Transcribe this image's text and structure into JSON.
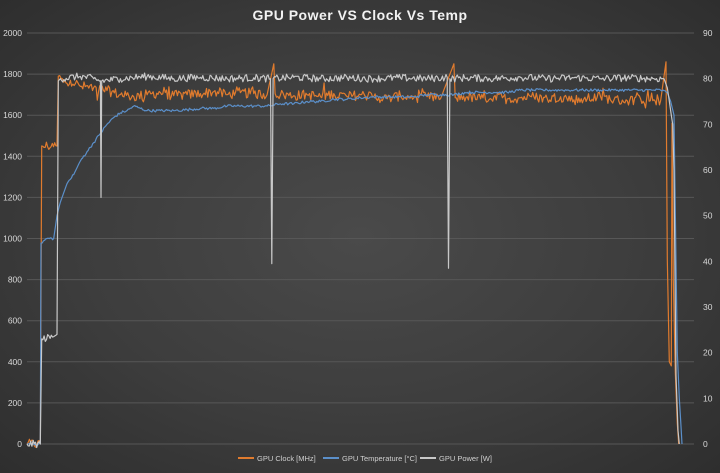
{
  "chart_data": {
    "type": "line",
    "title": "GPU Power VS Clock Vs Temp",
    "xlabel": "",
    "ylabel": "",
    "left_axis": {
      "min": 0,
      "max": 2000,
      "ticks": [
        "0",
        "200",
        "400",
        "600",
        "800",
        "1000",
        "1200",
        "1400",
        "1600",
        "1800",
        "2000"
      ]
    },
    "right_axis": {
      "min": 0,
      "max": 90,
      "ticks": [
        "0",
        "10",
        "20",
        "30",
        "40",
        "50",
        "60",
        "70",
        "80",
        "90"
      ]
    },
    "x_range": [
      0,
      100
    ],
    "grid": true,
    "legend_position": "bottom",
    "series": [
      {
        "name": "GPU Clock [MHz]",
        "axis": "left",
        "color": "#e07b2e",
        "points": [
          [
            0,
            0
          ],
          [
            2,
            0
          ],
          [
            2.2,
            1450
          ],
          [
            4.5,
            1450
          ],
          [
            4.7,
            1790
          ],
          [
            5.5,
            1760
          ],
          [
            6.5,
            1770
          ],
          [
            8,
            1740
          ],
          [
            10,
            1735
          ],
          [
            12,
            1720
          ],
          [
            14,
            1700
          ],
          [
            16,
            1690
          ],
          [
            18,
            1700
          ],
          [
            20,
            1710
          ],
          [
            22,
            1695
          ],
          [
            24,
            1700
          ],
          [
            26,
            1705
          ],
          [
            28,
            1715
          ],
          [
            30,
            1700
          ],
          [
            32,
            1710
          ],
          [
            34,
            1705
          ],
          [
            36,
            1700
          ],
          [
            37,
            1850
          ],
          [
            37.2,
            1705
          ],
          [
            38,
            1700
          ],
          [
            40,
            1695
          ],
          [
            42,
            1700
          ],
          [
            44,
            1690
          ],
          [
            46,
            1705
          ],
          [
            48,
            1690
          ],
          [
            50,
            1700
          ],
          [
            52,
            1690
          ],
          [
            54,
            1680
          ],
          [
            56,
            1695
          ],
          [
            58,
            1685
          ],
          [
            60,
            1690
          ],
          [
            62,
            1680
          ],
          [
            64,
            1850
          ],
          [
            64.2,
            1685
          ],
          [
            66,
            1690
          ],
          [
            68,
            1680
          ],
          [
            70,
            1690
          ],
          [
            72,
            1680
          ],
          [
            74,
            1685
          ],
          [
            76,
            1690
          ],
          [
            78,
            1680
          ],
          [
            80,
            1690
          ],
          [
            82,
            1675
          ],
          [
            84,
            1680
          ],
          [
            86,
            1690
          ],
          [
            88,
            1675
          ],
          [
            90,
            1670
          ],
          [
            92,
            1680
          ],
          [
            94,
            1675
          ],
          [
            95,
            1670
          ],
          [
            95.8,
            1860
          ],
          [
            96,
            900
          ],
          [
            96.3,
            400
          ],
          [
            96.6,
            380
          ],
          [
            96.7,
            1560
          ],
          [
            96.9,
            800
          ],
          [
            97.2,
            350
          ],
          [
            97.5,
            100
          ],
          [
            97.7,
            0
          ]
        ],
        "noise": 25
      },
      {
        "name": "GPU Temperature [°C]",
        "axis": "right",
        "color": "#5b8fc9",
        "points": [
          [
            0,
            0
          ],
          [
            2,
            0
          ],
          [
            2.1,
            44
          ],
          [
            3,
            45
          ],
          [
            4,
            45
          ],
          [
            4.5,
            50
          ],
          [
            5,
            53
          ],
          [
            6,
            57
          ],
          [
            7,
            59
          ],
          [
            8,
            62
          ],
          [
            9,
            64
          ],
          [
            10,
            66
          ],
          [
            11,
            68
          ],
          [
            12,
            70
          ],
          [
            13,
            71.5
          ],
          [
            14,
            72.5
          ],
          [
            15,
            73
          ],
          [
            16,
            74
          ],
          [
            17,
            73.5
          ],
          [
            18,
            73
          ],
          [
            20,
            73
          ],
          [
            22,
            73
          ],
          [
            24,
            73.2
          ],
          [
            26,
            73.5
          ],
          [
            28,
            73.5
          ],
          [
            30,
            74
          ],
          [
            32,
            74
          ],
          [
            34,
            74
          ],
          [
            36,
            74
          ],
          [
            38,
            74.5
          ],
          [
            40,
            74.5
          ],
          [
            42,
            75
          ],
          [
            44,
            75
          ],
          [
            46,
            75.5
          ],
          [
            48,
            75.5
          ],
          [
            50,
            75.8
          ],
          [
            52,
            76
          ],
          [
            54,
            76
          ],
          [
            56,
            76
          ],
          [
            58,
            76
          ],
          [
            60,
            76.5
          ],
          [
            62,
            76.5
          ],
          [
            64,
            76.5
          ],
          [
            66,
            77
          ],
          [
            68,
            77
          ],
          [
            70,
            77
          ],
          [
            72,
            77
          ],
          [
            74,
            77.5
          ],
          [
            76,
            77.5
          ],
          [
            78,
            77.5
          ],
          [
            80,
            77.5
          ],
          [
            82,
            77.5
          ],
          [
            84,
            77.5
          ],
          [
            86,
            77.5
          ],
          [
            88,
            77.5
          ],
          [
            90,
            77.5
          ],
          [
            92,
            77.5
          ],
          [
            94,
            77.5
          ],
          [
            95,
            77.5
          ],
          [
            96,
            77
          ],
          [
            96.5,
            75
          ],
          [
            97,
            72
          ],
          [
            97.3,
            40
          ],
          [
            97.5,
            20
          ],
          [
            97.8,
            10
          ],
          [
            98,
            5
          ],
          [
            98.2,
            0
          ]
        ],
        "noise": 0.3
      },
      {
        "name": "GPU Power [W]",
        "axis": "right",
        "color": "#c8c8c8",
        "points": [
          [
            0,
            0
          ],
          [
            2,
            0
          ],
          [
            2.2,
            23
          ],
          [
            4,
            23.5
          ],
          [
            4.5,
            24
          ],
          [
            4.7,
            79.5
          ],
          [
            5,
            80
          ],
          [
            8,
            80.5
          ],
          [
            10,
            80
          ],
          [
            11,
            79.5
          ],
          [
            11.1,
            54
          ],
          [
            11.2,
            79.5
          ],
          [
            14,
            80
          ],
          [
            18,
            80.5
          ],
          [
            22,
            80
          ],
          [
            26,
            80.3
          ],
          [
            30,
            80
          ],
          [
            34,
            80.2
          ],
          [
            36.5,
            80
          ],
          [
            36.7,
            39.5
          ],
          [
            36.9,
            80
          ],
          [
            40,
            80.3
          ],
          [
            44,
            80
          ],
          [
            48,
            80.2
          ],
          [
            52,
            80
          ],
          [
            56,
            80.2
          ],
          [
            60,
            80
          ],
          [
            63,
            80.3
          ],
          [
            63.2,
            38.5
          ],
          [
            63.4,
            80
          ],
          [
            66,
            80.2
          ],
          [
            70,
            80
          ],
          [
            74,
            80.3
          ],
          [
            78,
            80
          ],
          [
            82,
            80.2
          ],
          [
            86,
            80
          ],
          [
            90,
            80.2
          ],
          [
            94,
            80
          ],
          [
            95.5,
            80
          ],
          [
            96,
            78
          ],
          [
            96.8,
            70
          ],
          [
            97,
            60
          ],
          [
            97.3,
            15
          ],
          [
            97.6,
            3
          ],
          [
            97.8,
            0
          ]
        ],
        "noise": 0.8
      }
    ]
  }
}
